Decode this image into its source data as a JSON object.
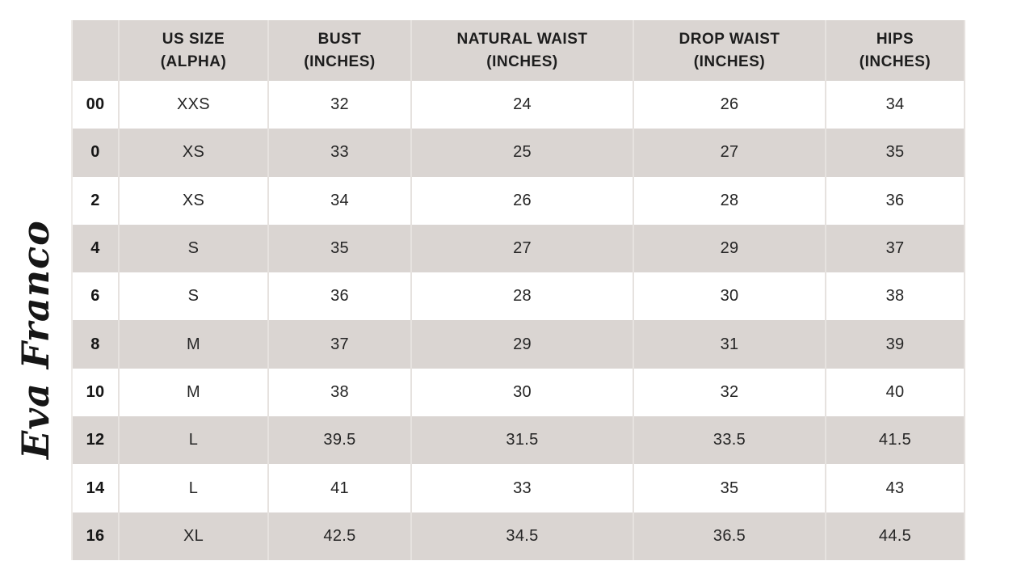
{
  "logo": {
    "text": "Eva Franco"
  },
  "colors": {
    "background": "#ffffff",
    "stripe_gray": "#dad5d2",
    "header_bg": "#dad5d2",
    "gridline": "#e6e2df",
    "text": "#212121"
  },
  "table": {
    "headers": [
      {
        "line1": "",
        "line2": ""
      },
      {
        "line1": "US SIZE",
        "line2": "(ALPHA)"
      },
      {
        "line1": "BUST",
        "line2": "(INCHES)"
      },
      {
        "line1": "NATURAL WAIST",
        "line2": "(INCHES)"
      },
      {
        "line1": "DROP WAIST",
        "line2": "(INCHES)"
      },
      {
        "line1": "HIPS",
        "line2": "(INCHES)"
      }
    ]
  },
  "chart_data": {
    "type": "table",
    "title": "Eva Franco size chart",
    "columns": [
      "",
      "US SIZE (ALPHA)",
      "BUST (INCHES)",
      "NATURAL WAIST (INCHES)",
      "DROP WAIST (INCHES)",
      "HIPS (INCHES)"
    ],
    "rows": [
      [
        "00",
        "XXS",
        "32",
        "24",
        "26",
        "34"
      ],
      [
        "0",
        "XS",
        "33",
        "25",
        "27",
        "35"
      ],
      [
        "2",
        "XS",
        "34",
        "26",
        "28",
        "36"
      ],
      [
        "4",
        "S",
        "35",
        "27",
        "29",
        "37"
      ],
      [
        "6",
        "S",
        "36",
        "28",
        "30",
        "38"
      ],
      [
        "8",
        "M",
        "37",
        "29",
        "31",
        "39"
      ],
      [
        "10",
        "M",
        "38",
        "30",
        "32",
        "40"
      ],
      [
        "12",
        "L",
        "39.5",
        "31.5",
        "33.5",
        "41.5"
      ],
      [
        "14",
        "L",
        "41",
        "33",
        "35",
        "43"
      ],
      [
        "16",
        "XL",
        "42.5",
        "34.5",
        "36.5",
        "44.5"
      ]
    ]
  }
}
